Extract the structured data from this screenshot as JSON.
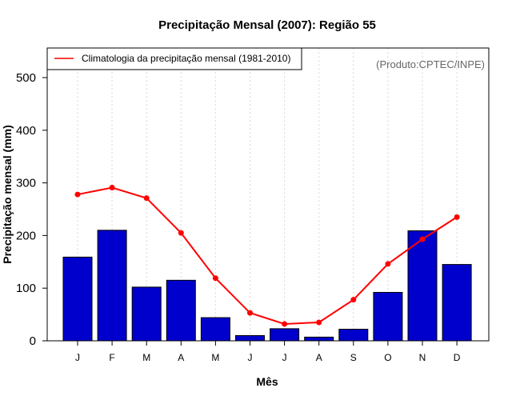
{
  "chart_data": {
    "type": "bar",
    "title": "Precipitação Mensal (2007): Região 55",
    "xlabel": "Mês",
    "ylabel": "Precipitação mensal (mm)",
    "ylim": [
      0,
      560
    ],
    "yticks": [
      "0",
      "100",
      "200",
      "300",
      "400",
      "500"
    ],
    "ytick_values": [
      0,
      100,
      200,
      300,
      400,
      500
    ],
    "categories": [
      "J",
      "F",
      "M",
      "A",
      "M",
      "J",
      "J",
      "A",
      "S",
      "O",
      "N",
      "D"
    ],
    "series": [
      {
        "name": "Precipitação mensal 2007",
        "kind": "bar",
        "color": "#0000cc",
        "values": [
          159,
          210,
          102,
          115,
          44,
          10,
          23,
          7,
          22,
          92,
          209,
          145
        ]
      },
      {
        "name": "Climatologia da precipitação mensal (1981-2010)",
        "kind": "line",
        "color": "#ff0000",
        "values": [
          278,
          291,
          271,
          205,
          119,
          53,
          32,
          35,
          78,
          146,
          193,
          235
        ]
      }
    ],
    "legend": {
      "position": "top-left",
      "entries": [
        "Climatologia da precipitação mensal (1981-2010)"
      ]
    },
    "annotation": "(Produto:CPTEC/INPE)",
    "grid": "vertical-dotted"
  }
}
